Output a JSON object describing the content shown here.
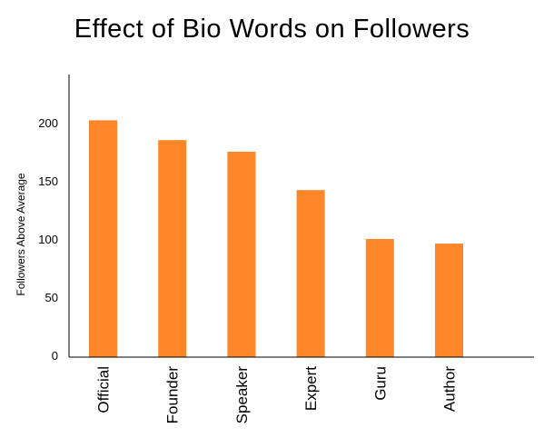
{
  "chart_data": {
    "type": "bar",
    "title": "Effect of Bio Words on Followers",
    "xlabel": "",
    "ylabel": "Followers Above Average",
    "categories": [
      "Official",
      "Founder",
      "Speaker",
      "Expert",
      "Guru",
      "Author"
    ],
    "values": [
      202,
      185,
      175,
      142,
      100,
      96
    ],
    "ylim": [
      0,
      240
    ],
    "yticks": [
      0,
      50,
      100,
      150,
      200
    ],
    "grid": false,
    "legend": "none",
    "bar_color": "#fd8628"
  }
}
